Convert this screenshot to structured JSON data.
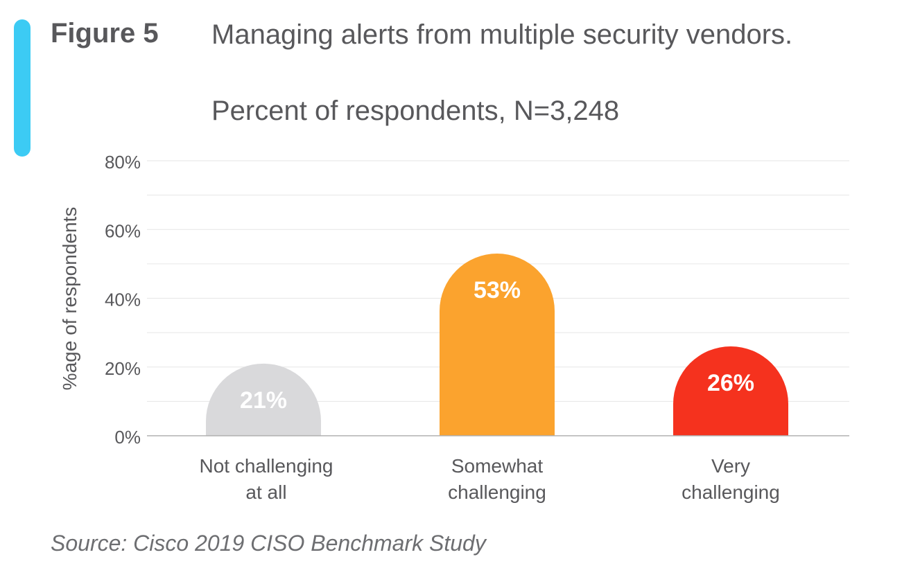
{
  "figure_label": "Figure 5",
  "source": "Source: Cisco 2019 CISO Benchmark Study",
  "colors": {
    "accent": "#3ccbf4",
    "grid": "#e6e6e6",
    "axis": "#b0b0b0"
  },
  "chart_data": {
    "type": "bar",
    "title": "Managing alerts from multiple security vendors.",
    "subtitle": "Percent of respondents, N=3,248",
    "xlabel": "",
    "ylabel": "%age of respondents",
    "ylim": [
      0,
      80
    ],
    "yticks": [
      0,
      20,
      40,
      60,
      80
    ],
    "ytick_labels": [
      "0%",
      "20%",
      "40%",
      "60%",
      "80%"
    ],
    "grid": true,
    "categories": [
      [
        "Not challenging",
        "at all"
      ],
      [
        "Somewhat",
        "challenging"
      ],
      [
        "Very",
        "challenging"
      ]
    ],
    "values": [
      21,
      53,
      26
    ],
    "data_labels": [
      "21%",
      "53%",
      "26%"
    ],
    "bar_colors": [
      "#d9d9db",
      "#fba32e",
      "#f5321e"
    ]
  }
}
